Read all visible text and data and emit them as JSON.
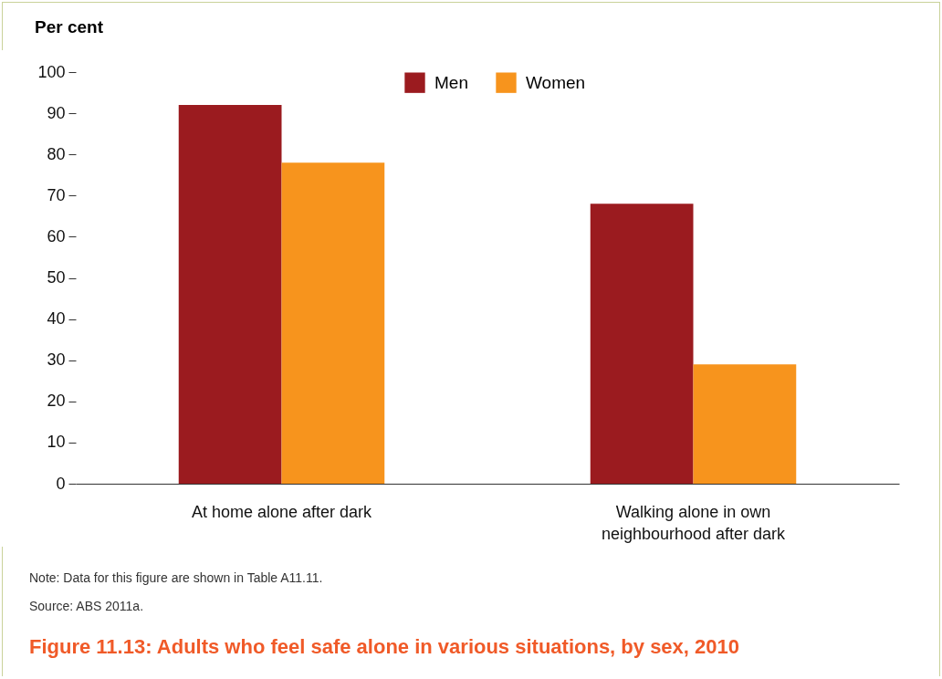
{
  "chart_data": {
    "type": "bar",
    "title": "Figure 11.13: Adults who feel safe alone in various situations, by sex, 2010",
    "ylabel": "Per cent",
    "categories": [
      "At home alone after dark",
      "Walking alone in own neighbourhood after dark"
    ],
    "series": [
      {
        "name": "Men",
        "color": "#9b1b1f",
        "values": [
          92,
          68
        ]
      },
      {
        "name": "Women",
        "color": "#f7941d",
        "values": [
          78,
          29
        ]
      }
    ],
    "ylim": [
      0,
      100
    ],
    "yticks": [
      0,
      10,
      20,
      30,
      40,
      50,
      60,
      70,
      80,
      90,
      100
    ],
    "grid": false,
    "legend": "top",
    "annotations": [
      "Note: Data for this figure are shown in Table A11.11.",
      "Source: ABS 2011a."
    ]
  }
}
